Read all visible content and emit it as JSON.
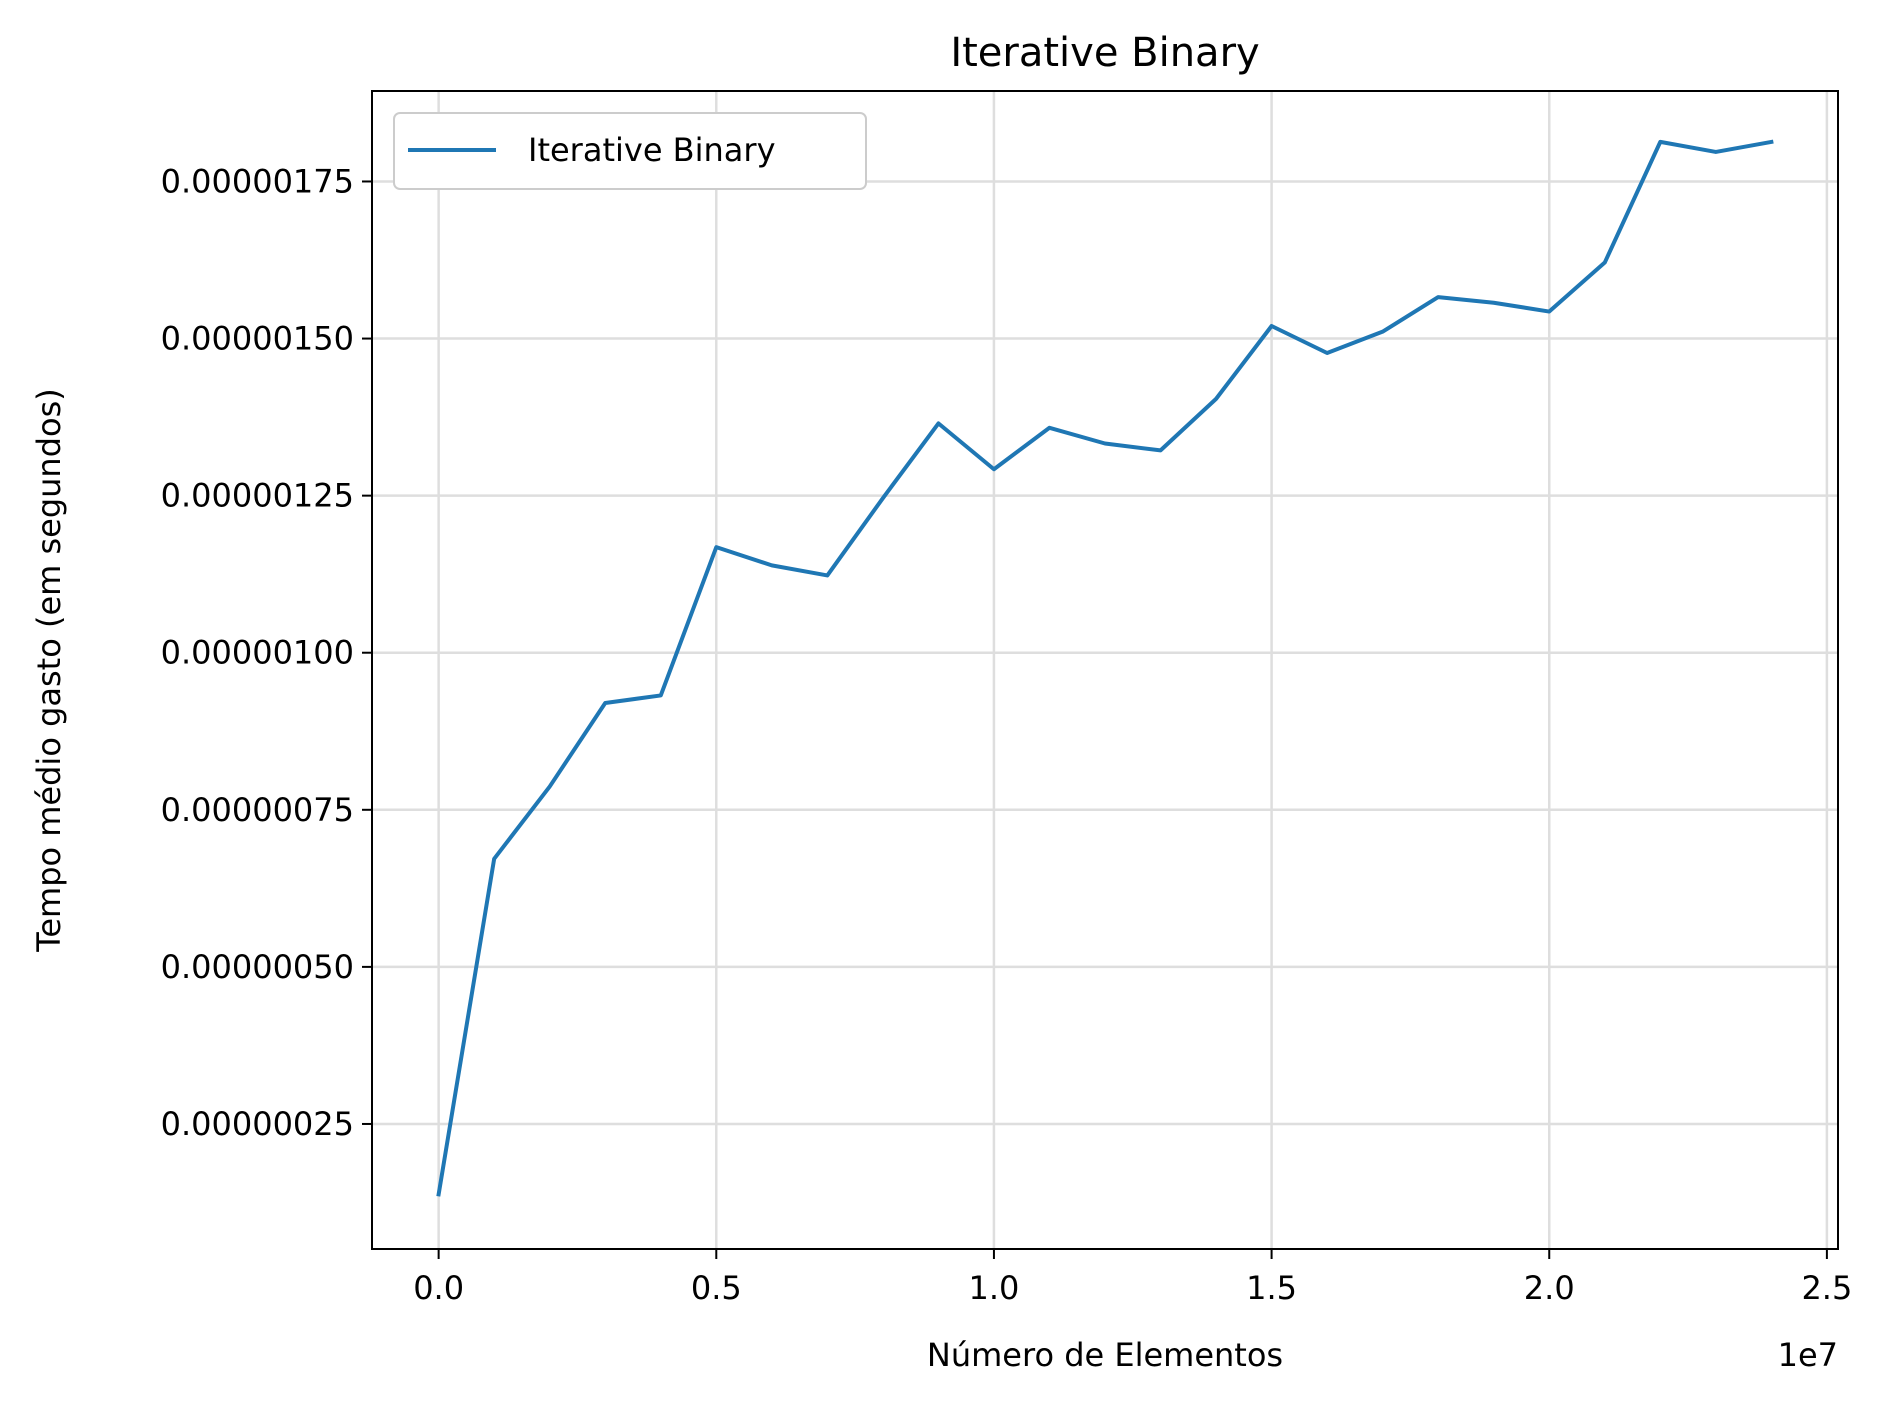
{
  "chart_data": {
    "type": "line",
    "title": "Iterative Binary",
    "xlabel": "Número de Elementos",
    "ylabel": "Tempo médio gasto (em segundos)",
    "x_offset_label": "1e7",
    "x_scale": 10000000,
    "xlim": [
      -1200000,
      25200000
    ],
    "ylim": [
      5.1e-08,
      1.894e-06
    ],
    "x_ticks": [
      0.0,
      0.5,
      1.0,
      1.5,
      2.0,
      2.5
    ],
    "x_tick_labels": [
      "0.0",
      "0.5",
      "1.0",
      "1.5",
      "2.0",
      "2.5"
    ],
    "y_ticks": [
      2.5e-07,
      5e-07,
      7.5e-07,
      1e-06,
      1.25e-06,
      1.5e-06,
      1.75e-06
    ],
    "y_tick_labels": [
      "0.00000025",
      "0.00000050",
      "0.00000075",
      "0.00000100",
      "0.00000125",
      "0.00000150",
      "0.00000175"
    ],
    "grid": true,
    "legend_position": "top-left",
    "series": [
      {
        "name": "Iterative Binary",
        "color": "#1f77b4",
        "x": [
          1,
          1000000,
          2000000,
          3000000,
          4000000,
          5000000,
          6000000,
          7000000,
          8000000,
          9000000,
          10000000,
          11000000,
          12000000,
          13000000,
          14000000,
          15000000,
          16000000,
          17000000,
          18000000,
          19000000,
          20000000,
          21000000,
          22000000,
          23000000,
          24000000
        ],
        "y": [
          1.38e-07,
          6.72e-07,
          7.87e-07,
          9.2e-07,
          9.32e-07,
          1.168e-06,
          1.139e-06,
          1.123e-06,
          1.246e-06,
          1.365e-06,
          1.292e-06,
          1.358e-06,
          1.333e-06,
          1.322e-06,
          1.404e-06,
          1.52e-06,
          1.477e-06,
          1.511e-06,
          1.566e-06,
          1.557e-06,
          1.543e-06,
          1.621e-06,
          1.813e-06,
          1.797e-06,
          1.813e-06
        ]
      }
    ]
  }
}
